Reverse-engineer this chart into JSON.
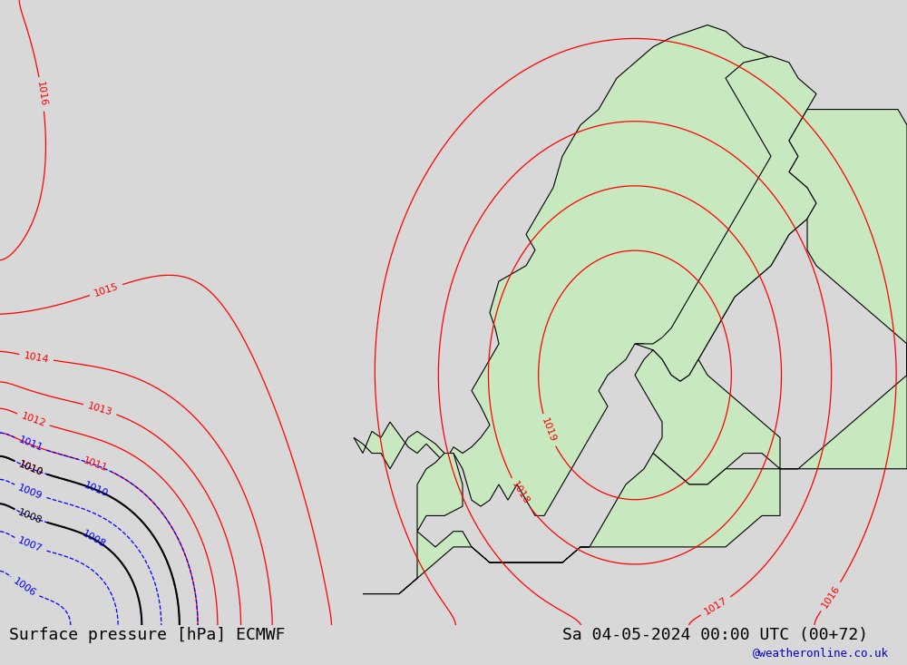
{
  "title_left": "Surface pressure [hPa] ECMWF",
  "title_right": "Sa 04-05-2024 00:00 UTC (00+72)",
  "watermark": "@weatheronline.co.uk",
  "bg_color": "#d8d8d8",
  "land_color": "#c8e8c0",
  "sea_color": "#d8d8d8",
  "contour_color_red": "#ff0000",
  "contour_color_blue": "#0000ff",
  "contour_color_black": "#000000",
  "title_fontsize": 13,
  "watermark_color": "#0000cc",
  "figsize": [
    10.0,
    7.33
  ]
}
